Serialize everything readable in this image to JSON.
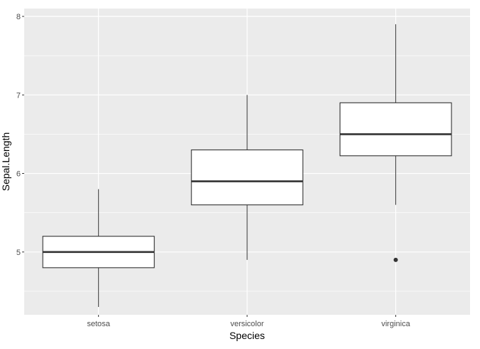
{
  "chart_data": {
    "type": "boxplot",
    "title": "",
    "xlabel": "Species",
    "ylabel": "Sepal.Length",
    "categories": [
      "setosa",
      "versicolor",
      "virginica"
    ],
    "ylim": [
      4.2,
      8.1
    ],
    "yticks": [
      5,
      6,
      7,
      8
    ],
    "grid": true,
    "colors": {
      "panel_background": "#ebebeb",
      "grid": "#ffffff",
      "box_fill": "#ffffff",
      "box_stroke": "#333333",
      "tick_text": "#4d4d4d"
    },
    "boxes": [
      {
        "category": "setosa",
        "whisker_low": 4.3,
        "q1": 4.8,
        "median": 5.0,
        "q3": 5.2,
        "whisker_high": 5.8,
        "outliers": []
      },
      {
        "category": "versicolor",
        "whisker_low": 4.9,
        "q1": 5.6,
        "median": 5.9,
        "q3": 6.3,
        "whisker_high": 7.0,
        "outliers": []
      },
      {
        "category": "virginica",
        "whisker_low": 5.6,
        "q1": 6.225,
        "median": 6.5,
        "q3": 6.9,
        "whisker_high": 7.9,
        "outliers": [
          4.9
        ]
      }
    ]
  }
}
